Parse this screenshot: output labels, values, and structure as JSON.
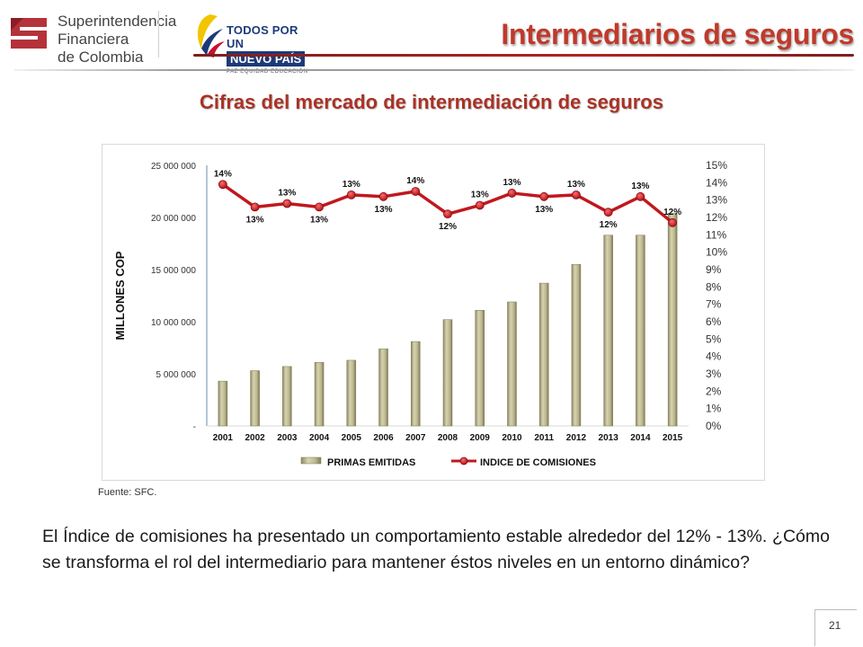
{
  "header": {
    "logo_sfc_lines": [
      "Superintendencia",
      "Financiera",
      "de Colombia"
    ],
    "logo_gov_line1": "TODOS POR UN",
    "logo_gov_line2": "NUEVO PAÍS",
    "logo_gov_line3": "PAZ  EQUIDAD  EDUCACIÓN",
    "title": "Intermediarios de seguros"
  },
  "subtitle": "Cifras del mercado de intermediación de seguros",
  "chart_data": {
    "type": "bar",
    "categories": [
      "2001",
      "2002",
      "2003",
      "2004",
      "2005",
      "2006",
      "2007",
      "2008",
      "2009",
      "2010",
      "2011",
      "2012",
      "2013",
      "2014",
      "2015"
    ],
    "ylabel": "MILLONES COP",
    "ylim": [
      0,
      25000000
    ],
    "y_ticks": [
      "-",
      "5 000 000",
      "10 000 000",
      "15 000 000",
      "20 000 000",
      "25 000 000"
    ],
    "y2lim": [
      0,
      15
    ],
    "y2_ticks": [
      "0%",
      "1%",
      "2%",
      "3%",
      "4%",
      "5%",
      "6%",
      "7%",
      "8%",
      "9%",
      "10%",
      "11%",
      "12%",
      "13%",
      "14%",
      "15%"
    ],
    "legend_position": "bottom",
    "series": [
      {
        "name": "PRIMAS EMITIDAS",
        "type": "bar",
        "axis": "left",
        "color": "#b9b58d",
        "values": [
          4300000,
          5300000,
          5700000,
          6100000,
          6300000,
          7400000,
          8100000,
          10200000,
          11100000,
          11900000,
          13700000,
          15500000,
          18300000,
          18300000,
          20400000
        ]
      },
      {
        "name": "INDICE DE COMISIONES",
        "type": "line",
        "axis": "right",
        "color": "#c0181e",
        "values": [
          13.9,
          12.6,
          12.8,
          12.6,
          13.3,
          13.2,
          13.5,
          12.2,
          12.7,
          13.4,
          13.2,
          13.3,
          12.3,
          13.2,
          11.7
        ],
        "labels": [
          "14%",
          "13%",
          "13%",
          "13%",
          "13%",
          "13%",
          "14%",
          "12%",
          "13%",
          "13%",
          "13%",
          "13%",
          "12%",
          "13%",
          "12%"
        ]
      }
    ]
  },
  "source": "Fuente: SFC.",
  "body_text": "El Índice de comisiones ha presentado un comportamiento estable alrededor del 12% - 13%. ¿Cómo se transforma el rol del intermediario para mantener éstos niveles en un entorno dinámico?",
  "page_number": "21",
  "colors": {
    "title_red": "#c0392b",
    "bar_fill": "#b9b58d",
    "line_red": "#c0181e"
  }
}
